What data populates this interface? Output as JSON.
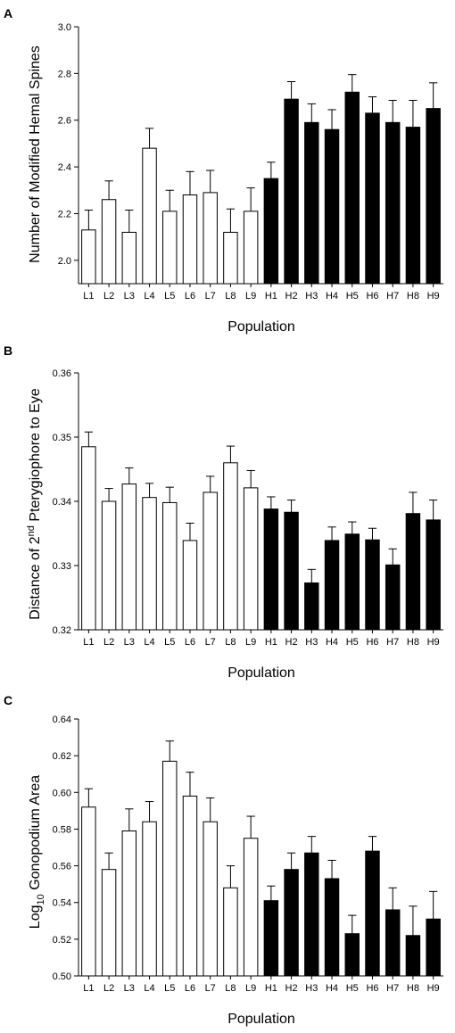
{
  "chart_data": [
    {
      "panel": "A",
      "type": "bar",
      "categories": [
        "L1",
        "L2",
        "L3",
        "L4",
        "L5",
        "L6",
        "L7",
        "L8",
        "L9",
        "H1",
        "H2",
        "H3",
        "H4",
        "H5",
        "H6",
        "H7",
        "H8",
        "H9"
      ],
      "values": [
        2.13,
        2.26,
        2.12,
        2.48,
        2.21,
        2.28,
        2.29,
        2.12,
        2.21,
        2.35,
        2.69,
        2.59,
        2.56,
        2.72,
        2.63,
        2.59,
        2.57,
        2.65
      ],
      "errors": [
        0.085,
        0.08,
        0.095,
        0.085,
        0.09,
        0.1,
        0.095,
        0.1,
        0.1,
        0.07,
        0.075,
        0.08,
        0.085,
        0.075,
        0.07,
        0.095,
        0.115,
        0.11
      ],
      "bar_colors": [
        "#ffffff",
        "#ffffff",
        "#ffffff",
        "#ffffff",
        "#ffffff",
        "#ffffff",
        "#ffffff",
        "#ffffff",
        "#ffffff",
        "#000000",
        "#000000",
        "#000000",
        "#000000",
        "#000000",
        "#000000",
        "#000000",
        "#000000",
        "#000000"
      ],
      "xlabel": "Population",
      "ylabel": "Number of Modified Hemal Spines",
      "ylim": [
        1.9,
        3.0
      ],
      "yticks": [
        2.0,
        2.2,
        2.4,
        2.6,
        2.8,
        3.0
      ],
      "ytick_labels": [
        "2.0",
        "2.2",
        "2.4",
        "2.6",
        "2.8",
        "3.0"
      ]
    },
    {
      "panel": "B",
      "type": "bar",
      "categories": [
        "L1",
        "L2",
        "L3",
        "L4",
        "L5",
        "L6",
        "L7",
        "L8",
        "L9",
        "H1",
        "H2",
        "H3",
        "H4",
        "H5",
        "H6",
        "H7",
        "H8",
        "H9"
      ],
      "values": [
        0.3485,
        0.34,
        0.3427,
        0.3406,
        0.3398,
        0.3339,
        0.3414,
        0.346,
        0.3421,
        0.3388,
        0.3383,
        0.3273,
        0.3339,
        0.3349,
        0.334,
        0.3301,
        0.3381,
        0.3371
      ],
      "errors": [
        0.0023,
        0.002,
        0.0025,
        0.0022,
        0.0024,
        0.0027,
        0.0025,
        0.0026,
        0.0027,
        0.0019,
        0.0019,
        0.0021,
        0.0021,
        0.0019,
        0.0018,
        0.0025,
        0.0033,
        0.0031
      ],
      "bar_colors": [
        "#ffffff",
        "#ffffff",
        "#ffffff",
        "#ffffff",
        "#ffffff",
        "#ffffff",
        "#ffffff",
        "#ffffff",
        "#ffffff",
        "#000000",
        "#000000",
        "#000000",
        "#000000",
        "#000000",
        "#000000",
        "#000000",
        "#000000",
        "#000000"
      ],
      "xlabel": "Population",
      "ylabel": "Distance of 2nd Pterygiophore to Eye",
      "ylabel_parts": {
        "lead": "Distance of 2",
        "sup": "nd",
        "tail": " Pterygiophore to Eye"
      },
      "ylim": [
        0.32,
        0.36
      ],
      "yticks": [
        0.32,
        0.33,
        0.34,
        0.35,
        0.36
      ],
      "ytick_labels": [
        "0.32",
        "0.33",
        "0.34",
        "0.35",
        "0.36"
      ]
    },
    {
      "panel": "C",
      "type": "bar",
      "categories": [
        "L1",
        "L2",
        "L3",
        "L4",
        "L5",
        "L6",
        "L7",
        "L8",
        "L9",
        "H1",
        "H2",
        "H3",
        "H4",
        "H5",
        "H6",
        "H7",
        "H8",
        "H9"
      ],
      "values": [
        0.592,
        0.558,
        0.579,
        0.584,
        0.617,
        0.598,
        0.584,
        0.548,
        0.575,
        0.541,
        0.558,
        0.567,
        0.553,
        0.523,
        0.568,
        0.536,
        0.522,
        0.531
      ],
      "errors": [
        0.01,
        0.009,
        0.012,
        0.011,
        0.011,
        0.013,
        0.013,
        0.012,
        0.012,
        0.008,
        0.009,
        0.009,
        0.01,
        0.01,
        0.008,
        0.012,
        0.016,
        0.015
      ],
      "bar_colors": [
        "#ffffff",
        "#ffffff",
        "#ffffff",
        "#ffffff",
        "#ffffff",
        "#ffffff",
        "#ffffff",
        "#ffffff",
        "#ffffff",
        "#000000",
        "#000000",
        "#000000",
        "#000000",
        "#000000",
        "#000000",
        "#000000",
        "#000000",
        "#000000"
      ],
      "xlabel": "Population",
      "ylabel": "Log10 Gonopodium Area",
      "ylabel_parts": {
        "lead": "Log",
        "sub": "10",
        "tail": " Gonopodium Area"
      },
      "ylim": [
        0.5,
        0.64
      ],
      "yticks": [
        0.5,
        0.52,
        0.54,
        0.56,
        0.58,
        0.6,
        0.62,
        0.64
      ],
      "ytick_labels": [
        "0.50",
        "0.52",
        "0.54",
        "0.56",
        "0.58",
        "0.60",
        "0.62",
        "0.64"
      ]
    }
  ]
}
